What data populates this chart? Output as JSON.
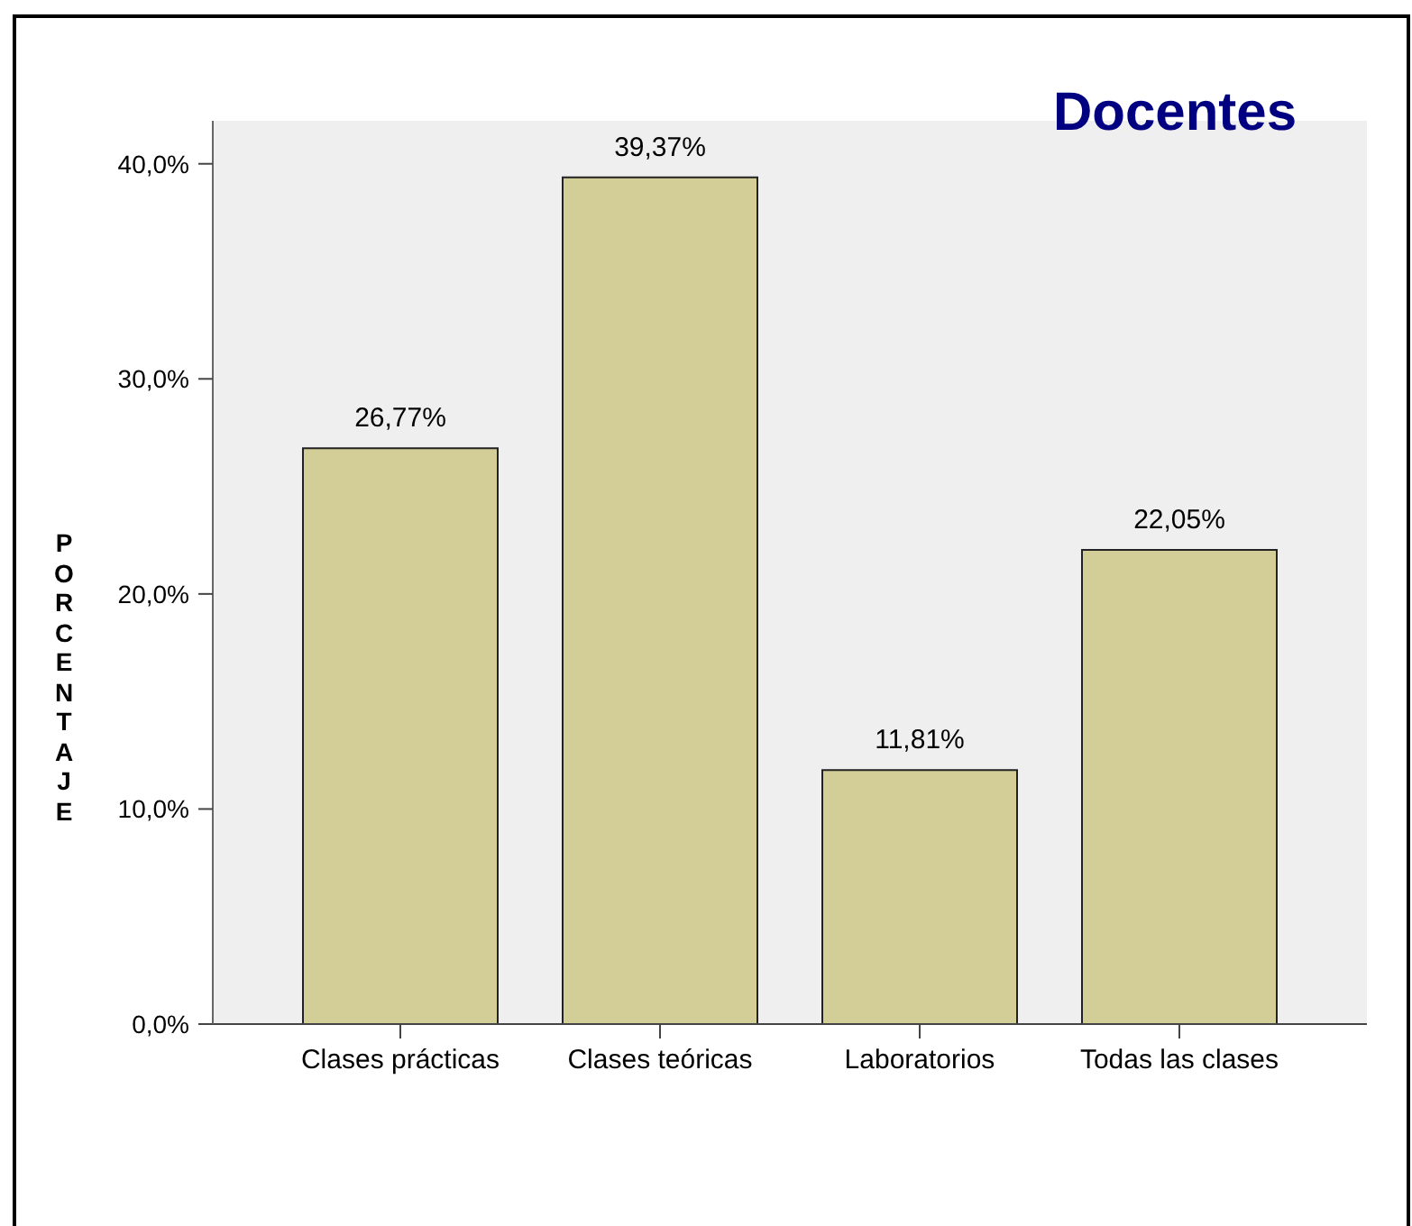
{
  "chart_data": {
    "type": "bar",
    "title": "Docentes",
    "ylabel": "PORCENTAJE",
    "categories": [
      "Clases prácticas",
      "Clases teóricas",
      "Laboratorios",
      "Todas las clases"
    ],
    "values": [
      26.77,
      39.37,
      11.81,
      22.05
    ],
    "color": "#d3ce97",
    "value_labels": [
      "26,77%",
      "39,37%",
      "11,81%",
      "22,05%"
    ],
    "ylim": [
      0,
      42
    ],
    "yticks": [
      {
        "value": 0,
        "label": "0,0%"
      },
      {
        "value": 10,
        "label": "10,0%"
      },
      {
        "value": 20,
        "label": "20,0%"
      },
      {
        "value": 30,
        "label": "30,0%"
      },
      {
        "value": 40,
        "label": "40,0%"
      }
    ],
    "grid": false,
    "legend": false
  }
}
